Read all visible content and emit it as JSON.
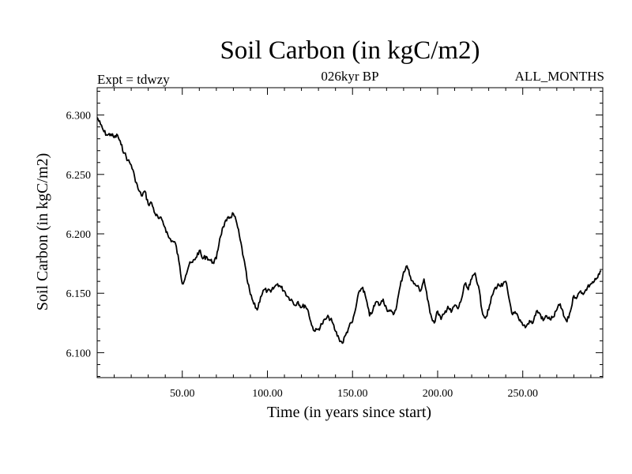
{
  "header": {
    "title": "Soil Carbon (in kgC/m2)",
    "subtitle": "026kyr BP",
    "experiment": "Expt = tdwzy",
    "period": "ALL_MONTHS"
  },
  "chart_data": {
    "type": "line",
    "title": "Soil Carbon (in kgC/m2)",
    "subtitle": "026kyr BP",
    "xlabel": "Time (in years since start)",
    "ylabel": "Soil Carbon (in kgC/m2)",
    "xlim": [
      0,
      297
    ],
    "ylim": [
      6.079,
      6.323
    ],
    "x_ticks": [
      50,
      100,
      150,
      200,
      250
    ],
    "x_tick_labels": [
      "50.00",
      "100.00",
      "150.00",
      "200.00",
      "250.00"
    ],
    "y_ticks": [
      6.1,
      6.15,
      6.2,
      6.25,
      6.3
    ],
    "y_tick_labels": [
      "6.100",
      "6.150",
      "6.200",
      "6.250",
      "6.300"
    ],
    "grid": false,
    "line_color": "#000000",
    "series": [
      {
        "x": [
          0,
          2,
          4,
          6,
          8,
          10,
          12,
          14,
          16,
          18,
          20,
          22,
          24,
          26,
          28,
          30,
          32,
          34,
          36,
          38,
          40,
          42,
          44,
          46,
          48,
          50,
          52,
          54,
          56,
          58,
          60,
          62,
          64,
          66,
          68,
          70,
          72,
          74,
          76,
          78,
          80,
          82,
          84,
          86,
          88,
          90,
          92,
          94,
          96,
          98,
          100,
          102,
          104,
          106,
          108,
          110,
          112,
          114,
          116,
          118,
          120,
          122,
          124,
          126,
          128,
          130,
          132,
          134,
          136,
          138,
          140,
          142,
          144,
          146,
          148,
          150,
          152,
          154,
          156,
          158,
          160,
          162,
          164,
          166,
          168,
          170,
          172,
          174,
          176,
          178,
          180,
          182,
          184,
          186,
          188,
          190,
          192,
          194,
          196,
          198,
          200,
          202,
          204,
          206,
          208,
          210,
          212,
          214,
          216,
          218,
          220,
          222,
          224,
          226,
          228,
          230,
          232,
          234,
          236,
          238,
          240,
          242,
          244,
          246,
          248,
          250,
          252,
          254,
          256,
          258,
          260,
          262,
          264,
          266,
          268,
          270,
          272,
          274,
          276,
          278,
          280,
          282,
          284,
          286,
          288,
          290,
          292,
          294,
          296
        ],
        "y": [
          6.298,
          6.292,
          6.286,
          6.283,
          6.284,
          6.281,
          6.283,
          6.275,
          6.268,
          6.262,
          6.258,
          6.248,
          6.238,
          6.232,
          6.236,
          6.225,
          6.226,
          6.217,
          6.213,
          6.212,
          6.205,
          6.197,
          6.194,
          6.192,
          6.177,
          6.158,
          6.165,
          6.174,
          6.176,
          6.18,
          6.186,
          6.179,
          6.181,
          6.178,
          6.176,
          6.179,
          6.196,
          6.206,
          6.211,
          6.214,
          6.217,
          6.209,
          6.195,
          6.18,
          6.162,
          6.149,
          6.141,
          6.136,
          6.147,
          6.153,
          6.152,
          6.151,
          6.155,
          6.158,
          6.155,
          6.152,
          6.147,
          6.145,
          6.14,
          6.143,
          6.138,
          6.14,
          6.135,
          6.123,
          6.118,
          6.12,
          6.124,
          6.128,
          6.13,
          6.126,
          6.118,
          6.112,
          6.108,
          6.115,
          6.122,
          6.126,
          6.138,
          6.152,
          6.155,
          6.145,
          6.131,
          6.136,
          6.143,
          6.14,
          6.145,
          6.137,
          6.135,
          6.132,
          6.14,
          6.156,
          6.168,
          6.173,
          6.164,
          6.158,
          6.156,
          6.152,
          6.162,
          6.145,
          6.132,
          6.125,
          6.135,
          6.128,
          6.133,
          6.139,
          6.134,
          6.14,
          6.137,
          6.145,
          6.158,
          6.153,
          6.162,
          6.167,
          6.156,
          6.136,
          6.129,
          6.136,
          6.148,
          6.155,
          6.157,
          6.156,
          6.16,
          6.145,
          6.132,
          6.133,
          6.127,
          6.123,
          6.122,
          6.127,
          6.125,
          6.135,
          6.133,
          6.127,
          6.131,
          6.128,
          6.13,
          6.136,
          6.141,
          6.131,
          6.126,
          6.135,
          6.148,
          6.147,
          6.152,
          6.15,
          6.155,
          6.158,
          6.16,
          6.163,
          6.169
        ]
      }
    ]
  }
}
